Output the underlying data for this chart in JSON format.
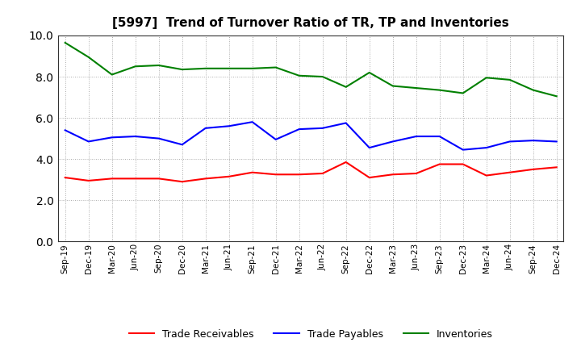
{
  "title": "[5997]  Trend of Turnover Ratio of TR, TP and Inventories",
  "labels": [
    "Sep-19",
    "Dec-19",
    "Mar-20",
    "Jun-20",
    "Sep-20",
    "Dec-20",
    "Mar-21",
    "Jun-21",
    "Sep-21",
    "Dec-21",
    "Mar-22",
    "Jun-22",
    "Sep-22",
    "Dec-22",
    "Mar-23",
    "Jun-23",
    "Sep-23",
    "Dec-23",
    "Mar-24",
    "Jun-24",
    "Sep-24",
    "Dec-24"
  ],
  "trade_receivables": [
    3.1,
    2.95,
    3.05,
    3.05,
    3.05,
    2.9,
    3.05,
    3.15,
    3.35,
    3.25,
    3.25,
    3.3,
    3.85,
    3.1,
    3.25,
    3.3,
    3.75,
    3.75,
    3.2,
    3.35,
    3.5,
    3.6
  ],
  "trade_payables": [
    5.4,
    4.85,
    5.05,
    5.1,
    5.0,
    4.7,
    5.5,
    5.6,
    5.8,
    4.95,
    5.45,
    5.5,
    5.75,
    4.55,
    4.85,
    5.1,
    5.1,
    4.45,
    4.55,
    4.85,
    4.9,
    4.85
  ],
  "inventories": [
    9.65,
    8.95,
    8.1,
    8.5,
    8.55,
    8.35,
    8.4,
    8.4,
    8.4,
    8.45,
    8.05,
    8.0,
    7.5,
    8.2,
    7.55,
    7.45,
    7.35,
    7.2,
    7.95,
    7.85,
    7.35,
    7.05
  ],
  "ylim": [
    0.0,
    10.0
  ],
  "yticks": [
    0.0,
    2.0,
    4.0,
    6.0,
    8.0,
    10.0
  ],
  "color_tr": "#ff0000",
  "color_tp": "#0000ff",
  "color_inv": "#008000",
  "legend_labels": [
    "Trade Receivables",
    "Trade Payables",
    "Inventories"
  ],
  "bg_color": "#ffffff",
  "grid_color": "#aaaaaa",
  "linewidth": 1.5
}
